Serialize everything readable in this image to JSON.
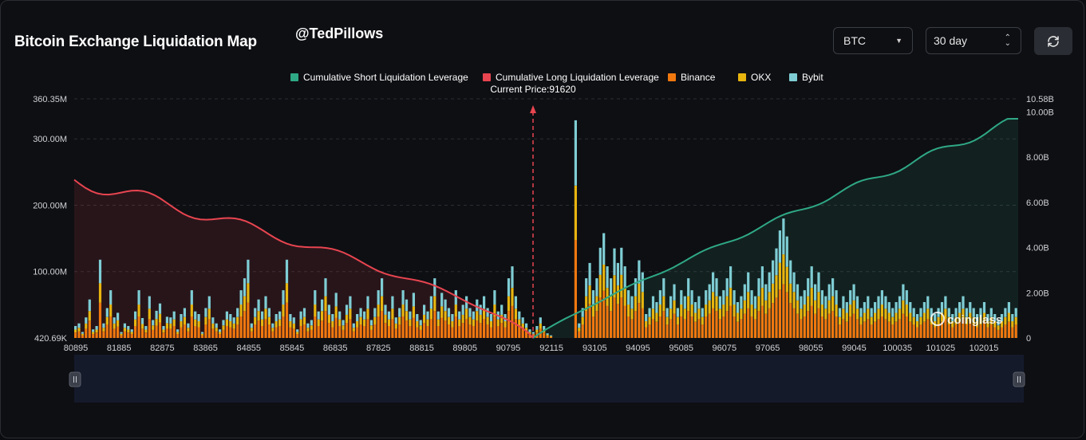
{
  "header": {
    "title": "Bitcoin Exchange Liquidation Map",
    "handle": "@TedPillows",
    "symbol_select": "BTC",
    "range_select": "30 day",
    "refresh_icon": "refresh-icon"
  },
  "colors": {
    "short_cumulative": "#2fa886",
    "long_cumulative": "#e84550",
    "binance": "#f0780f",
    "okx": "#e8b50f",
    "bybit": "#7fcdd4"
  },
  "chart_data": {
    "type": "bar",
    "title": "Bitcoin Exchange Liquidation Map",
    "current_price_label": "Current Price:91620",
    "current_price": 91620,
    "x_range": [
      80895,
      102960
    ],
    "x_tick_labels": [
      "80895",
      "81885",
      "82875",
      "83865",
      "84855",
      "85845",
      "86835",
      "87825",
      "88815",
      "89805",
      "90795",
      "92115",
      "93105",
      "94095",
      "95085",
      "96075",
      "97065",
      "98055",
      "99045",
      "100035",
      "101025",
      "102015"
    ],
    "y_left_tick_labels": [
      "360.35M",
      "300.00M",
      "200.00M",
      "100.00M",
      "420.69K"
    ],
    "y_left_ticks": [
      360.35,
      300,
      200,
      100,
      0.42
    ],
    "y_left_range": [
      0,
      360.35
    ],
    "y_right_tick_labels": [
      "10.58B",
      "10.00B",
      "8.00B",
      "6.00B",
      "4.00B",
      "2.00B",
      "0"
    ],
    "y_right_ticks": [
      10.58,
      10,
      8,
      6,
      4,
      2,
      0
    ],
    "y_right_range": [
      0,
      10.58
    ],
    "legend": [
      {
        "name": "Cumulative Short Liquidation Leverage",
        "color": "#2fa886"
      },
      {
        "name": "Cumulative Long Liquidation Leverage",
        "color": "#e84550"
      },
      {
        "name": "Binance",
        "color": "#f0780f"
      },
      {
        "name": "OKX",
        "color": "#e8b50f"
      },
      {
        "name": "Bybit",
        "color": "#7fcdd4"
      }
    ],
    "bar_series_totals_M": [
      18,
      22,
      9,
      31,
      58,
      13,
      18,
      118,
      22,
      45,
      72,
      31,
      38,
      9,
      22,
      18,
      13,
      40,
      72,
      30,
      18,
      63,
      27,
      41,
      52,
      18,
      32,
      31,
      40,
      13,
      36,
      45,
      22,
      72,
      40,
      36,
      9,
      45,
      63,
      31,
      22,
      13,
      27,
      40,
      36,
      31,
      45,
      72,
      90,
      118,
      22,
      45,
      58,
      40,
      63,
      45,
      22,
      36,
      40,
      72,
      118,
      36,
      31,
      13,
      40,
      45,
      22,
      27,
      72,
      40,
      58,
      90,
      50,
      36,
      68,
      40,
      27,
      50,
      63,
      22,
      36,
      45,
      40,
      63,
      27,
      45,
      72,
      90,
      50,
      40,
      63,
      31,
      45,
      72,
      58,
      40,
      68,
      36,
      27,
      50,
      40,
      63,
      90,
      40,
      68,
      58,
      45,
      36,
      72,
      40,
      50,
      63,
      45,
      40,
      58,
      50,
      63,
      45,
      36,
      72,
      40,
      50,
      36,
      90,
      108,
      63,
      40,
      31,
      22,
      13,
      9,
      18,
      31,
      18,
      7,
      4,
      0,
      0,
      0,
      0,
      0,
      0,
      328,
      22,
      45,
      90,
      113,
      72,
      90,
      136,
      158,
      108,
      90,
      135,
      113,
      136,
      108,
      72,
      63,
      90,
      117,
      99,
      36,
      45,
      63,
      54,
      72,
      90,
      45,
      63,
      81,
      45,
      72,
      63,
      90,
      72,
      54,
      63,
      45,
      72,
      81,
      99,
      90,
      63,
      72,
      90,
      108,
      72,
      54,
      63,
      81,
      99,
      72,
      63,
      90,
      108,
      81,
      99,
      117,
      135,
      162,
      180,
      153,
      117,
      99,
      81,
      63,
      72,
      90,
      108,
      81,
      99,
      72,
      63,
      81,
      90,
      72,
      45,
      63,
      54,
      72,
      81,
      63,
      45,
      54,
      63,
      45,
      54,
      63,
      72,
      63,
      54,
      45,
      54,
      63,
      81,
      72,
      54,
      45,
      36,
      45,
      54,
      63,
      45,
      36,
      45,
      54,
      63,
      45,
      36,
      45,
      54,
      63,
      45,
      54,
      45,
      36,
      45,
      54,
      36,
      45,
      36,
      27,
      36,
      45,
      54,
      36,
      45
    ],
    "bar_series_totals_note": "estimated stacked totals per price bin (millions)",
    "cumulative_long_B": {
      "start": 7.0,
      "end": 0.0,
      "x_start": 80895,
      "x_end": 91620
    },
    "cumulative_short_B": {
      "start": 0.0,
      "end": 9.7,
      "x_start": 91620,
      "x_end": 102960
    }
  },
  "watermark": "coinglass"
}
